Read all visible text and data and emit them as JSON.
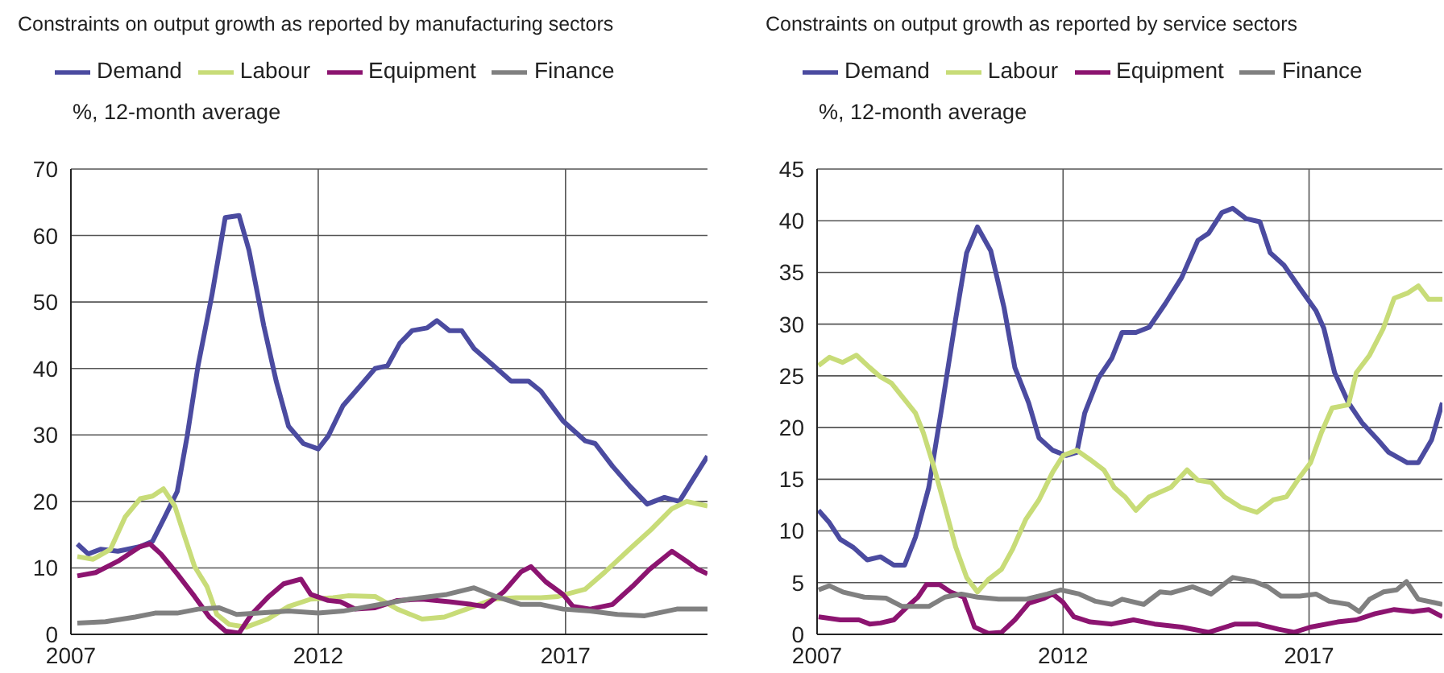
{
  "chart_data": [
    {
      "type": "line",
      "title": "Constraints on output growth as reported by manufacturing sectors",
      "ylabel": "%, 12-month average",
      "xlim": [
        2007,
        2019.87
      ],
      "xticks": [
        2007,
        2012,
        2017
      ],
      "ylim": [
        0,
        70
      ],
      "yticks": [
        0,
        10,
        20,
        30,
        40,
        50,
        60,
        70
      ],
      "grid": true,
      "legend": "top",
      "series": [
        {
          "name": "Demand",
          "color": "#4b4ba0",
          "x": [
            2007.13,
            2007.35,
            2007.6,
            2007.95,
            2008.4,
            2008.65,
            2008.9,
            2009.15,
            2009.35,
            2009.57,
            2009.85,
            2010.12,
            2010.4,
            2010.6,
            2010.9,
            2011.15,
            2011.4,
            2011.7,
            2012.0,
            2012.2,
            2012.5,
            2012.85,
            2013.15,
            2013.4,
            2013.65,
            2013.9,
            2014.2,
            2014.4,
            2014.65,
            2014.9,
            2015.15,
            2015.55,
            2015.9,
            2016.25,
            2016.5,
            2016.95,
            2017.4,
            2017.6,
            2017.95,
            2018.3,
            2018.65,
            2019.0,
            2019.3,
            2019.55,
            2019.87
          ],
          "values": [
            13.6,
            12.1,
            12.8,
            12.5,
            13.2,
            14,
            17.7,
            21.5,
            29.8,
            40.4,
            51,
            62.7,
            63,
            57.8,
            46.4,
            38.1,
            31.3,
            28.7,
            27.9,
            29.8,
            34.4,
            37.4,
            40,
            40.4,
            43.8,
            45.7,
            46.1,
            47.2,
            45.7,
            45.7,
            43,
            40.4,
            38.1,
            38.1,
            36.6,
            32.1,
            29.1,
            28.7,
            25.3,
            22.3,
            19.6,
            20.6,
            20,
            23,
            26.8
          ]
        },
        {
          "name": "Labour",
          "color": "#c8dc78",
          "x": [
            2007.13,
            2007.45,
            2007.8,
            2008.1,
            2008.4,
            2008.65,
            2008.87,
            2009.1,
            2009.3,
            2009.5,
            2009.75,
            2009.95,
            2010.2,
            2010.55,
            2010.98,
            2011.4,
            2011.85,
            2012.3,
            2012.6,
            2013.15,
            2013.6,
            2014.1,
            2014.55,
            2015.0,
            2015.55,
            2016.0,
            2016.5,
            2016.85,
            2017.4,
            2017.8,
            2018.35,
            2018.75,
            2019.15,
            2019.45,
            2019.87
          ],
          "values": [
            11.7,
            11.3,
            12.8,
            17.7,
            20.4,
            20.8,
            21.9,
            19.3,
            14.7,
            10.2,
            7.2,
            3,
            1.5,
            1.1,
            2.3,
            4.2,
            5.3,
            5.5,
            5.8,
            5.7,
            3.8,
            2.3,
            2.6,
            3.8,
            5.3,
            5.5,
            5.5,
            5.7,
            6.8,
            9.4,
            13.2,
            15.9,
            18.9,
            20,
            19.3
          ]
        },
        {
          "name": "Equipment",
          "color": "#8c1470",
          "x": [
            2007.13,
            2007.5,
            2007.95,
            2008.4,
            2008.6,
            2008.82,
            2009.15,
            2009.5,
            2009.8,
            2010.12,
            2010.4,
            2010.65,
            2011.0,
            2011.3,
            2011.65,
            2011.85,
            2012.2,
            2012.45,
            2012.75,
            2013.15,
            2013.6,
            2014.1,
            2014.65,
            2015.1,
            2015.35,
            2015.75,
            2016.1,
            2016.3,
            2016.6,
            2016.95,
            2017.15,
            2017.5,
            2017.95,
            2018.35,
            2018.7,
            2019.15,
            2019.45,
            2019.67,
            2019.87
          ],
          "values": [
            8.8,
            9.3,
            11,
            13.2,
            13.6,
            12.1,
            9.1,
            5.7,
            2.6,
            0.5,
            0.2,
            3,
            5.7,
            7.6,
            8.3,
            6,
            5.1,
            4.9,
            3.8,
            4,
            5.1,
            5.3,
            4.9,
            4.5,
            4.2,
            6.4,
            9.4,
            10.2,
            7.9,
            6,
            4.2,
            3.8,
            4.5,
            7.2,
            9.8,
            12.5,
            11,
            9.8,
            9.1
          ]
        },
        {
          "name": "Finance",
          "color": "#808080",
          "x": [
            2007.13,
            2007.7,
            2008.3,
            2008.7,
            2009.15,
            2009.57,
            2010.0,
            2010.35,
            2010.8,
            2011.4,
            2012.0,
            2012.5,
            2013.1,
            2013.85,
            2014.6,
            2015.15,
            2015.55,
            2016.1,
            2016.5,
            2016.95,
            2017.5,
            2018.05,
            2018.6,
            2019.25,
            2019.87
          ],
          "values": [
            1.7,
            1.9,
            2.6,
            3.2,
            3.2,
            3.8,
            4,
            3,
            3.2,
            3.5,
            3.2,
            3.5,
            4.3,
            5.3,
            6,
            7,
            5.8,
            4.5,
            4.5,
            3.8,
            3.5,
            3,
            2.8,
            3.8,
            3.8
          ]
        }
      ]
    },
    {
      "type": "line",
      "title": "Constraints on output growth as reported by service sectors",
      "ylabel": "%, 12-month average",
      "xlim": [
        2007,
        2019.71
      ],
      "xticks": [
        2007,
        2012,
        2017
      ],
      "ylim": [
        0,
        45
      ],
      "yticks": [
        0,
        5,
        10,
        15,
        20,
        25,
        30,
        35,
        40,
        45
      ],
      "grid": true,
      "legend": "top",
      "series": [
        {
          "name": "Demand",
          "color": "#4b4ba0",
          "x": [
            2007.03,
            2007.25,
            2007.47,
            2007.74,
            2008.02,
            2008.29,
            2008.56,
            2008.78,
            2009.0,
            2009.27,
            2009.55,
            2009.82,
            2010.04,
            2010.26,
            2010.53,
            2010.8,
            2011.02,
            2011.3,
            2011.51,
            2011.79,
            2012.06,
            2012.28,
            2012.44,
            2012.72,
            2012.99,
            2013.2,
            2013.48,
            2013.75,
            2014.08,
            2014.41,
            2014.74,
            2014.96,
            2015.23,
            2015.45,
            2015.72,
            2016.0,
            2016.21,
            2016.49,
            2016.81,
            2017.14,
            2017.3,
            2017.52,
            2017.8,
            2018.07,
            2018.4,
            2018.62,
            2019.0,
            2019.22,
            2019.49,
            2019.71
          ],
          "values": [
            12,
            10.8,
            9.2,
            8.4,
            7.2,
            7.5,
            6.7,
            6.7,
            9.4,
            14.2,
            22.4,
            30.6,
            36.9,
            39.4,
            37.1,
            31.6,
            25.8,
            22.4,
            19,
            17.8,
            17.3,
            17.6,
            21.4,
            24.8,
            26.7,
            29.2,
            29.2,
            29.7,
            32,
            34.5,
            38.1,
            38.8,
            40.8,
            41.2,
            40.2,
            39.9,
            36.9,
            35.7,
            33.5,
            31.3,
            29.6,
            25.3,
            22.4,
            20.5,
            18.8,
            17.6,
            16.6,
            16.6,
            18.8,
            22.4
          ]
        },
        {
          "name": "Labour",
          "color": "#c8dc78",
          "x": [
            2007.03,
            2007.25,
            2007.52,
            2007.8,
            2008.07,
            2008.29,
            2008.51,
            2008.78,
            2009.0,
            2009.16,
            2009.38,
            2009.6,
            2009.82,
            2010.04,
            2010.26,
            2010.48,
            2010.75,
            2010.97,
            2011.24,
            2011.51,
            2011.79,
            2012.0,
            2012.28,
            2012.55,
            2012.83,
            2013.04,
            2013.26,
            2013.48,
            2013.75,
            2014.19,
            2014.52,
            2014.74,
            2015.01,
            2015.28,
            2015.61,
            2015.94,
            2016.27,
            2016.54,
            2016.81,
            2017.03,
            2017.25,
            2017.47,
            2017.8,
            2017.96,
            2018.23,
            2018.51,
            2018.73,
            2019.0,
            2019.22,
            2019.43,
            2019.71
          ],
          "values": [
            26,
            26.8,
            26.3,
            27,
            25.8,
            24.9,
            24.3,
            22.7,
            21.4,
            19.5,
            16.1,
            12.3,
            8.4,
            5.5,
            4.1,
            5.3,
            6.3,
            8.2,
            11.1,
            13,
            15.7,
            17.3,
            17.8,
            16.9,
            15.9,
            14.2,
            13.3,
            12,
            13.3,
            14.2,
            15.9,
            14.9,
            14.7,
            13.3,
            12.3,
            11.8,
            13,
            13.3,
            15.2,
            16.6,
            19.5,
            21.9,
            22.2,
            25.3,
            27,
            29.6,
            32.5,
            33,
            33.7,
            32.4,
            32.4
          ]
        },
        {
          "name": "Equipment",
          "color": "#8c1470",
          "x": [
            2007.03,
            2007.47,
            2007.85,
            2008.07,
            2008.29,
            2008.56,
            2008.84,
            2009.05,
            2009.22,
            2009.49,
            2009.71,
            2009.98,
            2010.2,
            2010.48,
            2010.75,
            2011.02,
            2011.3,
            2011.62,
            2011.79,
            2012.0,
            2012.22,
            2012.55,
            2012.99,
            2013.43,
            2013.86,
            2014.41,
            2014.96,
            2015.5,
            2015.94,
            2016.38,
            2016.7,
            2017.03,
            2017.58,
            2017.96,
            2018.34,
            2018.73,
            2019.11,
            2019.43,
            2019.71
          ],
          "values": [
            1.7,
            1.4,
            1.4,
            1,
            1.1,
            1.4,
            2.7,
            3.6,
            4.8,
            4.8,
            4.1,
            3.6,
            0.7,
            0.1,
            0.2,
            1.4,
            3,
            3.5,
            3.9,
            3.1,
            1.7,
            1.2,
            1,
            1.4,
            1,
            0.7,
            0.2,
            1,
            1,
            0.5,
            0.2,
            0.7,
            1.2,
            1.4,
            2,
            2.4,
            2.2,
            2.4,
            1.7
          ]
        },
        {
          "name": "Finance",
          "color": "#808080",
          "x": [
            2007.03,
            2007.25,
            2007.52,
            2007.96,
            2008.4,
            2008.73,
            2008.95,
            2009.27,
            2009.6,
            2009.93,
            2010.26,
            2010.69,
            2011.24,
            2011.68,
            2011.95,
            2012.33,
            2012.66,
            2012.99,
            2013.2,
            2013.64,
            2013.97,
            2014.19,
            2014.63,
            2015.01,
            2015.45,
            2015.89,
            2016.16,
            2016.43,
            2016.81,
            2017.14,
            2017.41,
            2017.8,
            2018.02,
            2018.23,
            2018.51,
            2018.78,
            2018.98,
            2019.22,
            2019.71
          ],
          "values": [
            4.3,
            4.7,
            4.1,
            3.6,
            3.5,
            2.7,
            2.7,
            2.7,
            3.6,
            3.9,
            3.6,
            3.4,
            3.4,
            3.9,
            4.3,
            3.9,
            3.2,
            2.9,
            3.4,
            2.9,
            4.1,
            4,
            4.6,
            3.9,
            5.5,
            5.1,
            4.6,
            3.7,
            3.7,
            3.9,
            3.2,
            2.9,
            2.2,
            3.4,
            4.1,
            4.3,
            5.1,
            3.4,
            2.9
          ]
        }
      ]
    }
  ]
}
